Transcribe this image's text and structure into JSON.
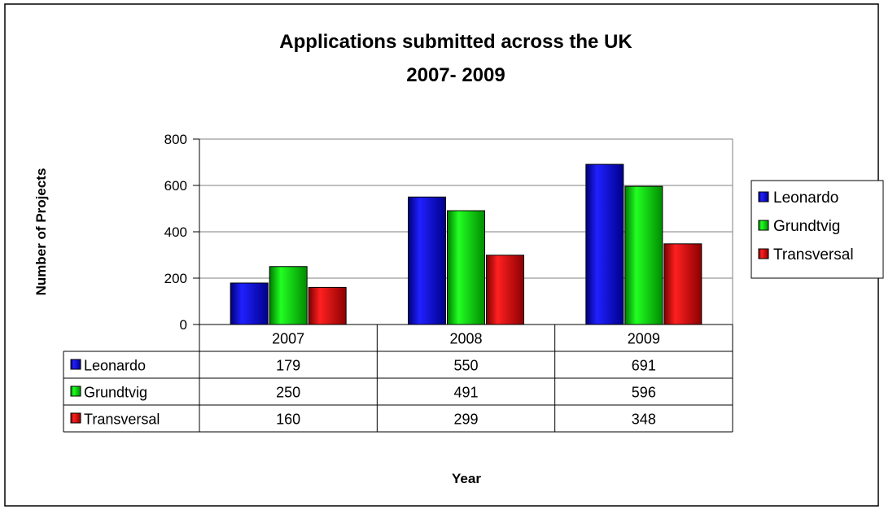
{
  "chart_data": {
    "type": "bar",
    "title": [
      "Applications submitted across the UK",
      "2007- 2009"
    ],
    "xlabel": "Year",
    "ylabel": "Number of Projects",
    "ylim": [
      0,
      800
    ],
    "yticks": [
      "0",
      "200",
      "400",
      "600",
      "800"
    ],
    "grid": true,
    "legend_position": "right",
    "data_table": true,
    "categories": [
      "2007",
      "2008",
      "2009"
    ],
    "series": [
      {
        "name": "Leonardo",
        "values": [
          179,
          550,
          691
        ],
        "color": "#0000cc"
      },
      {
        "name": "Grundtvig",
        "values": [
          250,
          491,
          596
        ],
        "color": "#00cc00"
      },
      {
        "name": "Transversal",
        "values": [
          160,
          299,
          348
        ],
        "color": "#cc0000"
      }
    ]
  }
}
